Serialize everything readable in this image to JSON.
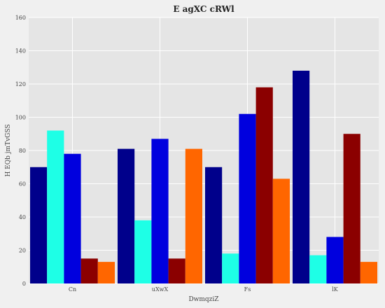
{
  "chart_data": {
    "type": "bar",
    "title": "E agXC cRWl",
    "xlabel": "DwmqziZ",
    "ylabel": "H EQb jmTvGSS",
    "categories": [
      "Cn",
      "uXwX",
      "Fs",
      "lK"
    ],
    "ylim": [
      0,
      160
    ],
    "yticks": [
      0,
      20,
      40,
      60,
      80,
      100,
      120,
      140,
      160
    ],
    "grid": true,
    "legend": "none",
    "series": [
      {
        "color": "#00008b",
        "values": [
          70,
          81,
          70,
          128
        ]
      },
      {
        "color": "#1effe6",
        "values": [
          92,
          38,
          18,
          17
        ]
      },
      {
        "color": "#0000de",
        "values": [
          78,
          87,
          102,
          28
        ]
      },
      {
        "color": "#8b0000",
        "values": [
          15,
          15,
          118,
          90
        ]
      },
      {
        "color": "#ff6600",
        "values": [
          13,
          81,
          63,
          13
        ]
      }
    ]
  }
}
